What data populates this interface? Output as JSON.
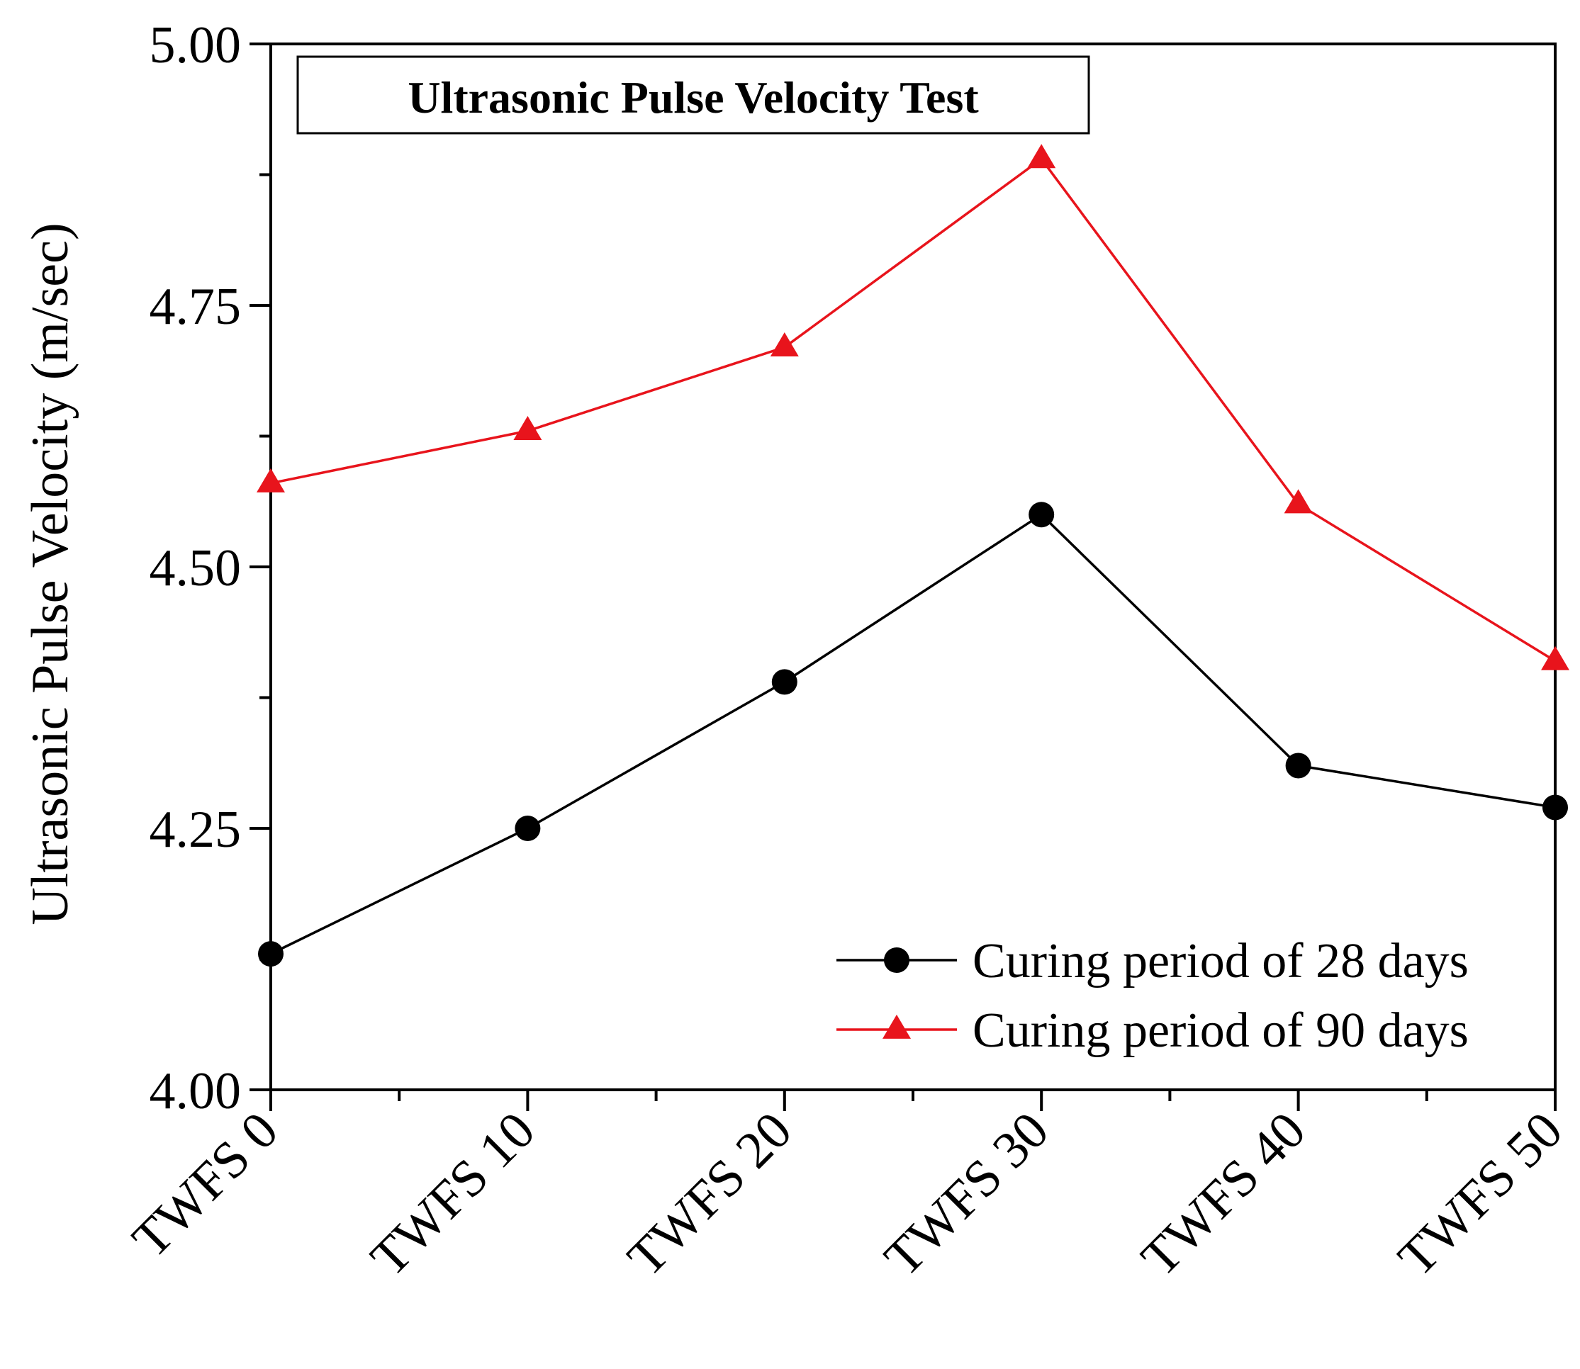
{
  "chart_data": {
    "type": "line",
    "title": "Ultrasonic Pulse Velocity Test",
    "xlabel": "",
    "ylabel": "Ultrasonic Pulse Velocity (m/sec)",
    "categories": [
      "TWFS 0",
      "TWFS 10",
      "TWFS 20",
      "TWFS 30",
      "TWFS 40",
      "TWFS 50"
    ],
    "ylim": [
      4.0,
      5.0
    ],
    "yticks": [
      "4.00",
      "4.25",
      "4.50",
      "4.75",
      "5.00"
    ],
    "grid": false,
    "legend_position": "bottom-right",
    "series": [
      {
        "name": "Curing period of 28 days",
        "color": "#000000",
        "marker": "circle",
        "values": [
          4.13,
          4.25,
          4.39,
          4.55,
          4.31,
          4.27
        ]
      },
      {
        "name": "Curing period of 90 days",
        "color": "#e8141c",
        "marker": "triangle",
        "values": [
          4.58,
          4.63,
          4.71,
          4.89,
          4.56,
          4.41
        ]
      }
    ]
  }
}
